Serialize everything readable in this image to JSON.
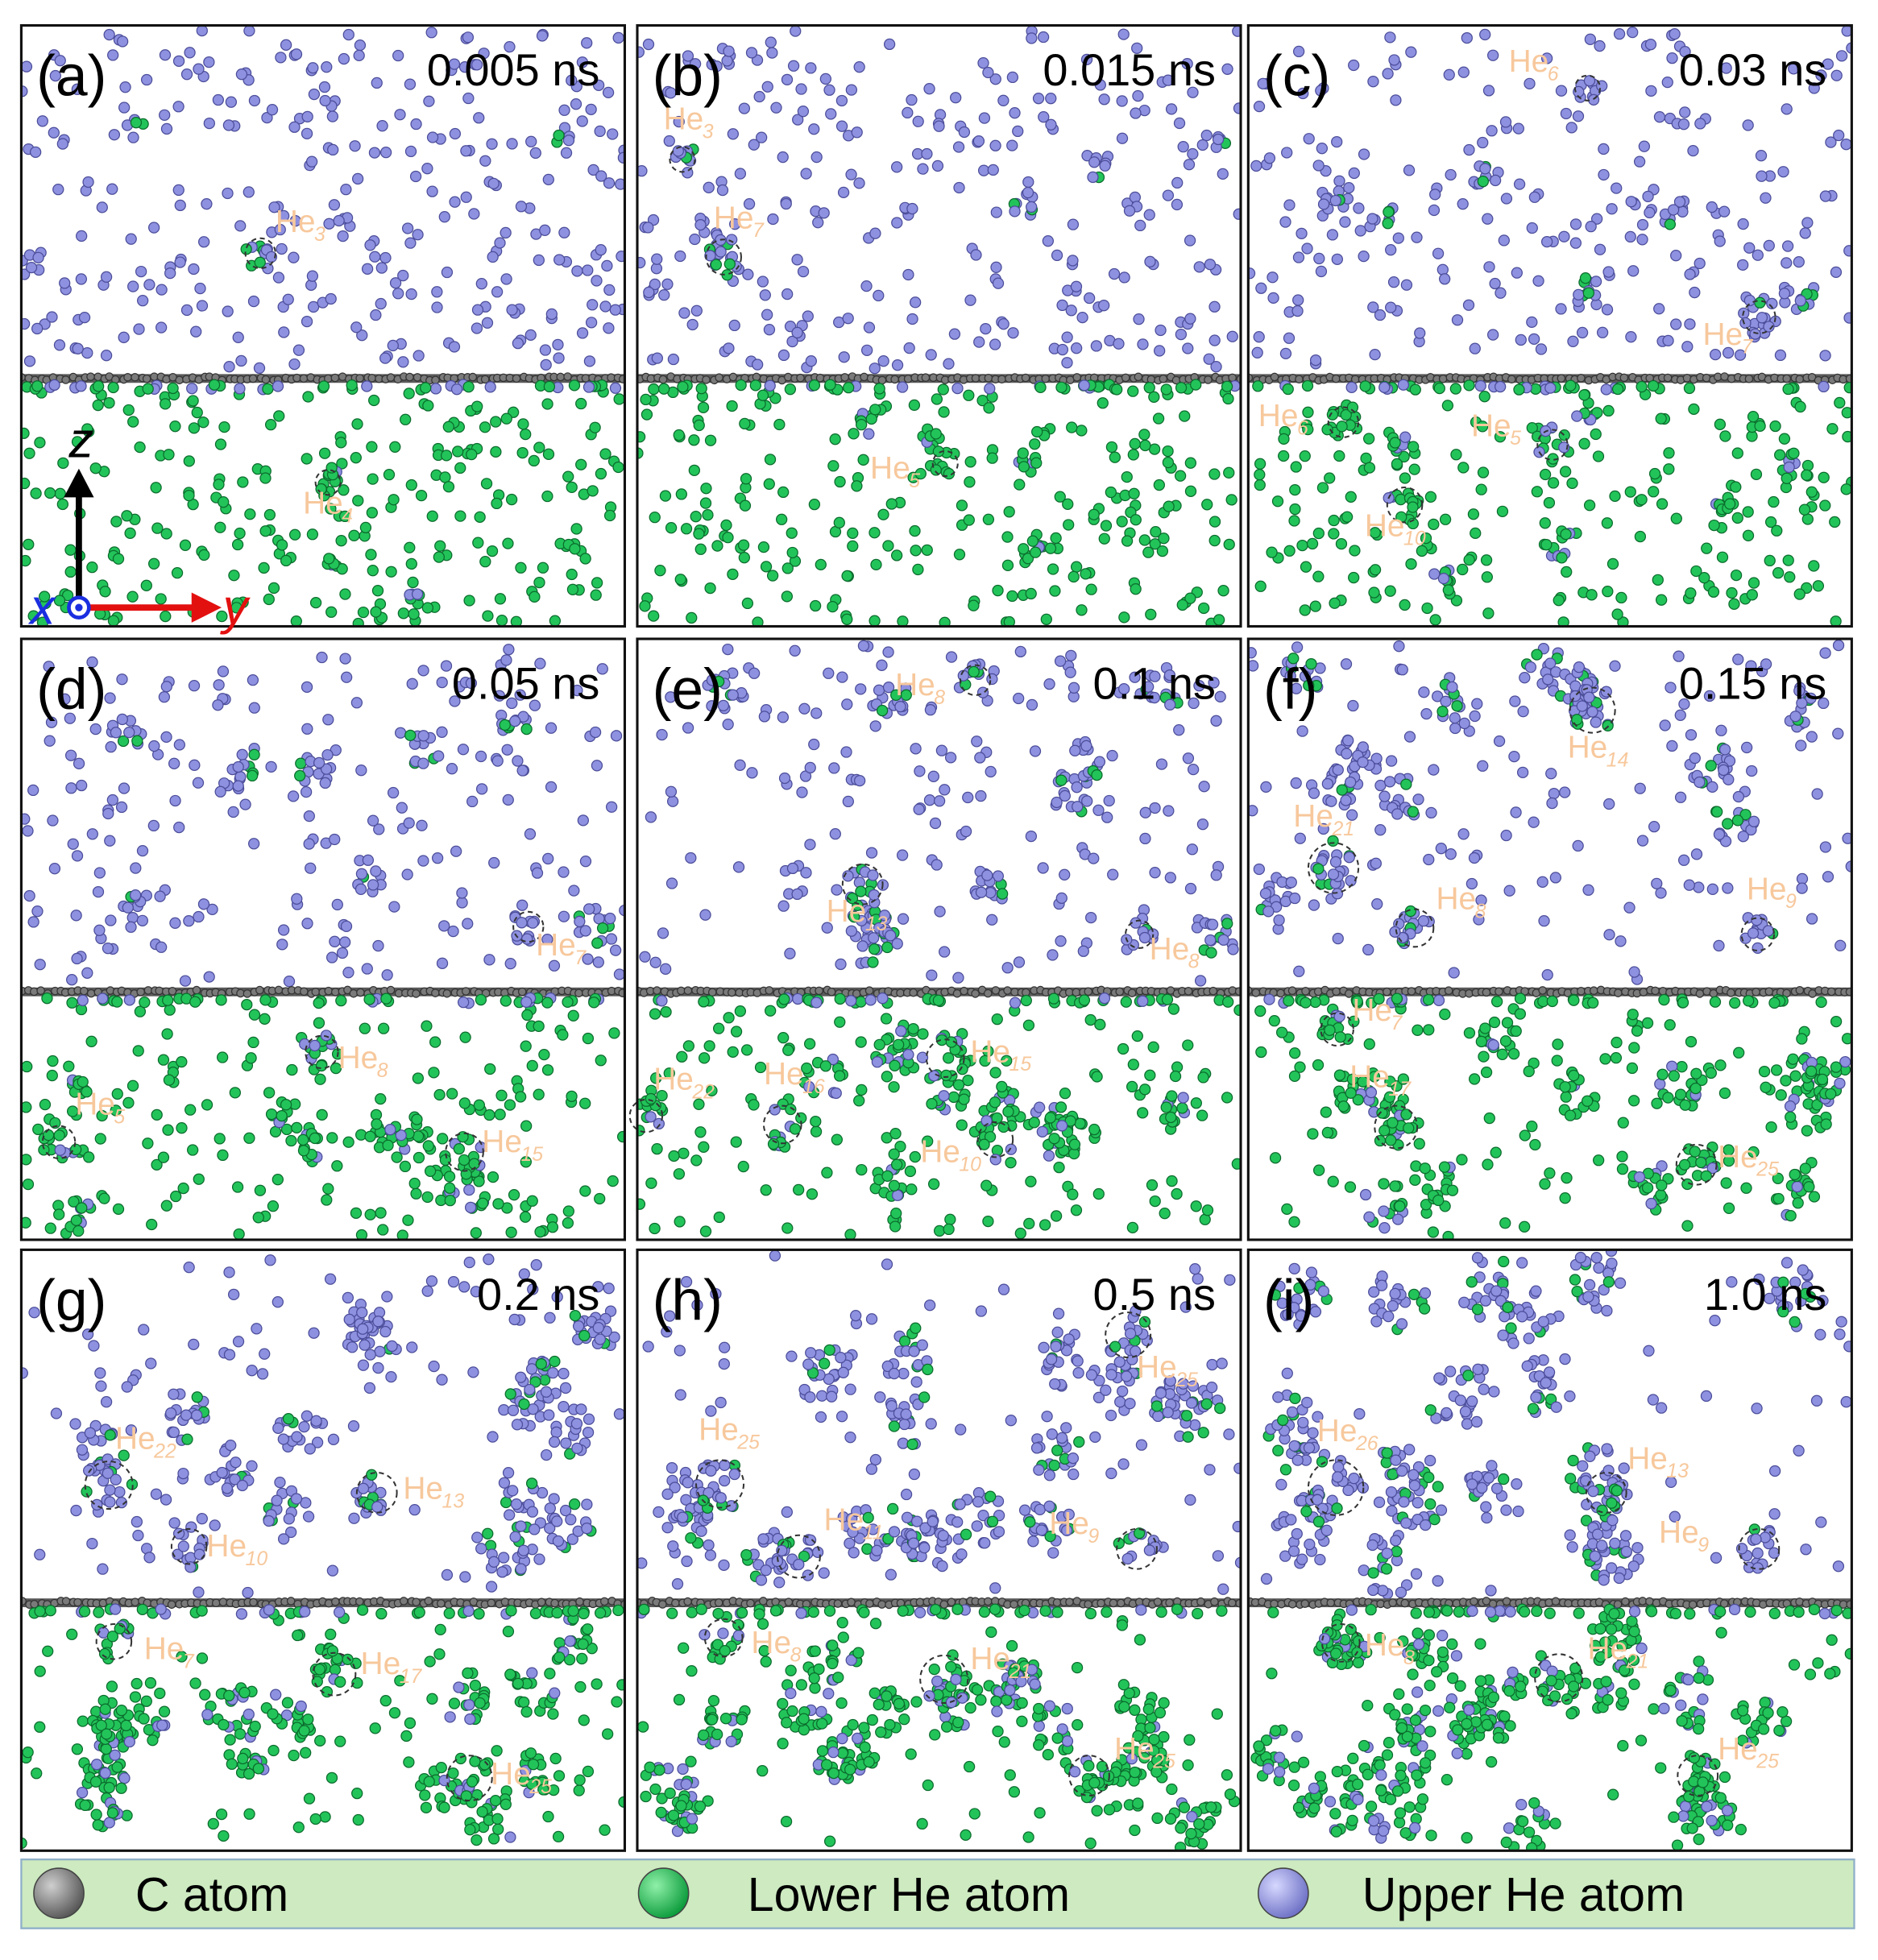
{
  "panels": [
    {
      "label": "(a)",
      "time": "0.005 ns",
      "clusters": [
        {
          "base": "He",
          "sub": "3"
        },
        {
          "base": "He",
          "sub": "4"
        }
      ]
    },
    {
      "label": "(b)",
      "time": "0.015 ns",
      "clusters": [
        {
          "base": "He",
          "sub": "3"
        },
        {
          "base": "He",
          "sub": "7"
        },
        {
          "base": "He",
          "sub": "5"
        }
      ]
    },
    {
      "label": "(c)",
      "time": "0.03 ns",
      "clusters": [
        {
          "base": "He",
          "sub": "6"
        },
        {
          "base": "He",
          "sub": "7"
        },
        {
          "base": "He",
          "sub": "6"
        },
        {
          "base": "He",
          "sub": "5"
        },
        {
          "base": "He",
          "sub": "10"
        }
      ]
    },
    {
      "label": "(d)",
      "time": "0.05 ns",
      "clusters": [
        {
          "base": "He",
          "sub": "7"
        },
        {
          "base": "He",
          "sub": "8"
        },
        {
          "base": "He",
          "sub": "5"
        },
        {
          "base": "He",
          "sub": "15"
        }
      ]
    },
    {
      "label": "(e)",
      "time": "0.1 ns",
      "clusters": [
        {
          "base": "He",
          "sub": "8"
        },
        {
          "base": "He",
          "sub": "13"
        },
        {
          "base": "He",
          "sub": "8"
        },
        {
          "base": "He",
          "sub": "15"
        },
        {
          "base": "He",
          "sub": "22"
        },
        {
          "base": "He",
          "sub": "16"
        },
        {
          "base": "He",
          "sub": "10"
        }
      ]
    },
    {
      "label": "(f)",
      "time": "0.15 ns",
      "clusters": [
        {
          "base": "He",
          "sub": "14"
        },
        {
          "base": "He",
          "sub": "21"
        },
        {
          "base": "He",
          "sub": "8"
        },
        {
          "base": "He",
          "sub": "9"
        },
        {
          "base": "He",
          "sub": "7"
        },
        {
          "base": "He",
          "sub": "17"
        },
        {
          "base": "He",
          "sub": "25"
        }
      ]
    },
    {
      "label": "(g)",
      "time": "0.2 ns",
      "clusters": [
        {
          "base": "He",
          "sub": "22"
        },
        {
          "base": "He",
          "sub": "13"
        },
        {
          "base": "He",
          "sub": "10"
        },
        {
          "base": "He",
          "sub": "7"
        },
        {
          "base": "He",
          "sub": "17"
        },
        {
          "base": "He",
          "sub": "25"
        }
      ]
    },
    {
      "label": "(h)",
      "time": "0.5 ns",
      "clusters": [
        {
          "base": "He",
          "sub": "25"
        },
        {
          "base": "He",
          "sub": "25"
        },
        {
          "base": "He",
          "sub": "11"
        },
        {
          "base": "He",
          "sub": "9"
        },
        {
          "base": "He",
          "sub": "8"
        },
        {
          "base": "He",
          "sub": "21"
        },
        {
          "base": "He",
          "sub": "25"
        }
      ]
    },
    {
      "label": "(i)",
      "time": "1.0 ns",
      "clusters": [
        {
          "base": "He",
          "sub": "26"
        },
        {
          "base": "He",
          "sub": "13"
        },
        {
          "base": "He",
          "sub": "9"
        },
        {
          "base": "He",
          "sub": "8"
        },
        {
          "base": "He",
          "sub": "21"
        },
        {
          "base": "He",
          "sub": "25"
        }
      ]
    }
  ],
  "axes": {
    "z": "z",
    "x": "x",
    "y": "y"
  },
  "legend": [
    "C atom",
    "Lower He atom",
    "Upper He atom"
  ]
}
